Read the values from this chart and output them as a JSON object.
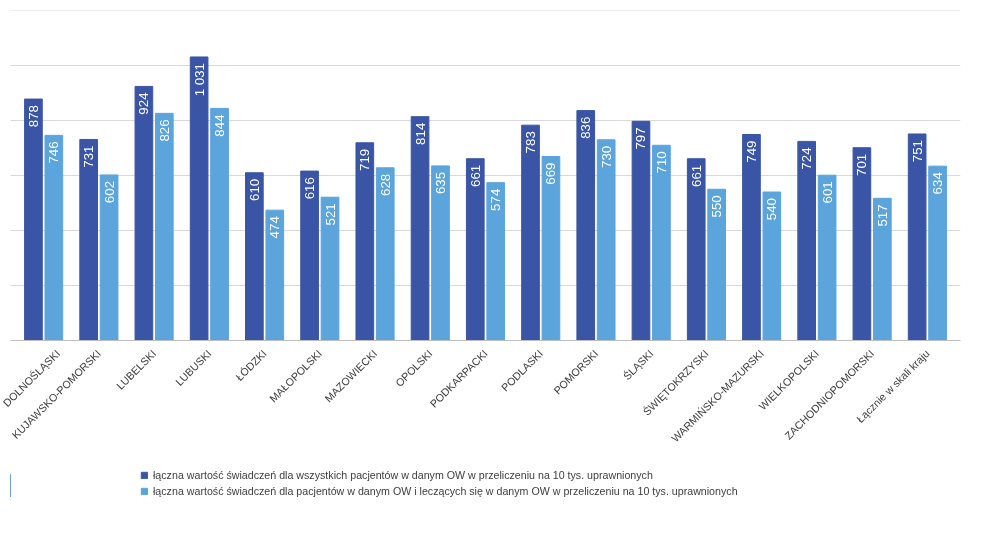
{
  "chart_data": {
    "type": "bar",
    "categories": [
      "DOLNOŚLĄSKI",
      "KUJAWSKO-POMORSKI",
      "LUBELSKI",
      "LUBUSKI",
      "ŁÓDZKI",
      "MAŁOPOLSKI",
      "MAZOWIECKI",
      "OPOLSKI",
      "PODKARPACKI",
      "PODLASKI",
      "POMORSKI",
      "ŚLĄSKI",
      "ŚWIĘTOKRZYSKI",
      "WARMIŃSKO-MAZURSKI",
      "WIELKOPOLSKI",
      "ZACHODNIOPOMORSKI",
      "Łącznie w skali kraju"
    ],
    "series": [
      {
        "name": "łączna wartość świadczeń dla wszystkich pacjentów w danym OW w przeliczeniu na 10 tys. uprawnionych",
        "color": "#3a55a6",
        "values": [
          878,
          731,
          924,
          1031,
          610,
          616,
          719,
          814,
          661,
          783,
          836,
          797,
          661,
          749,
          724,
          701,
          751
        ],
        "value_labels": [
          "878",
          "731",
          "924",
          "1 031",
          "610",
          "616",
          "719",
          "814",
          "661",
          "783",
          "836",
          "797",
          "661",
          "749",
          "724",
          "701",
          "751"
        ]
      },
      {
        "name": "łączna wartość świadczeń dla pacjentów w danym OW i leczących się w danym OW w przeliczeniu na 10 tys. uprawnionych",
        "color": "#5ba4dc",
        "values": [
          746,
          602,
          826,
          844,
          474,
          521,
          628,
          635,
          574,
          669,
          730,
          710,
          550,
          540,
          601,
          517,
          634
        ],
        "value_labels": [
          "746",
          "602",
          "826",
          "844",
          "474",
          "521",
          "628",
          "635",
          "574",
          "669",
          "730",
          "710",
          "550",
          "540",
          "601",
          "517",
          "634"
        ]
      }
    ],
    "ylim": [
      0,
      1200
    ],
    "yticks": [
      {
        "value": 0,
        "label": null
      },
      {
        "value": 200,
        "label": null
      },
      {
        "value": 400,
        "label": null
      },
      {
        "value": 600,
        "label": null
      },
      {
        "value": 800,
        "label": null
      },
      {
        "value": 1000,
        "label": null
      },
      {
        "value": 1200,
        "label": null
      }
    ],
    "tick_labels": "x",
    "grid": "y",
    "legend": "bottom"
  }
}
